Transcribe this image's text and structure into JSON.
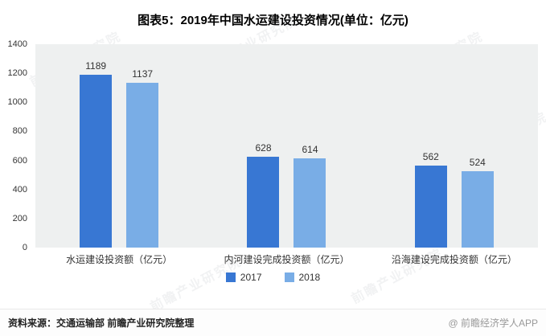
{
  "title": "图表5：2019年中国水运建设投资情况(单位：亿元)",
  "chart_data": {
    "type": "bar",
    "title": "图表5：2019年中国水运建设投资情况(单位：亿元)",
    "categories": [
      "水运建设投资额（亿元）",
      "内河建设完成投资额（亿元）",
      "沿海建设完成投资额（亿元）"
    ],
    "series": [
      {
        "name": "2017",
        "values": [
          1189,
          628,
          562
        ],
        "color": "#3877d3"
      },
      {
        "name": "2018",
        "values": [
          1137,
          614,
          524
        ],
        "color": "#79ade6"
      }
    ],
    "ylim": [
      0,
      1400
    ],
    "ytick_step": 200,
    "grid": false,
    "legend_position": "bottom",
    "plot_background": "#eef0f0"
  },
  "watermark": "前瞻产业研究院",
  "footer": {
    "source": "资料来源：交通运输部 前瞻产业研究院整理",
    "brand": "@ 前瞻经济学人APP"
  }
}
